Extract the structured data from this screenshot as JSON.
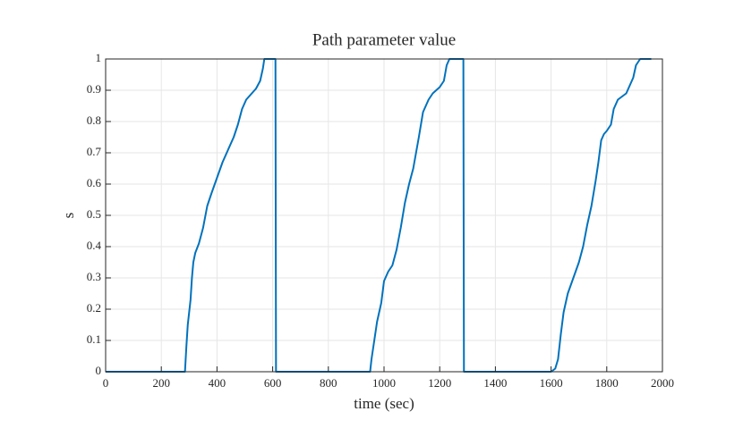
{
  "chart_data": {
    "type": "line",
    "title": "Path parameter value",
    "x_label": "time (sec)",
    "y_label": "s",
    "x": [
      0,
      285,
      290,
      295,
      305,
      310,
      315,
      322,
      335,
      350,
      365,
      380,
      400,
      420,
      440,
      460,
      475,
      490,
      505,
      520,
      540,
      555,
      565,
      570,
      610,
      612,
      950,
      955,
      965,
      975,
      990,
      1000,
      1015,
      1030,
      1045,
      1060,
      1075,
      1090,
      1105,
      1115,
      1125,
      1140,
      1160,
      1175,
      1200,
      1215,
      1225,
      1235,
      1285,
      1287,
      1600,
      1615,
      1625,
      1635,
      1645,
      1660,
      1680,
      1700,
      1715,
      1730,
      1745,
      1760,
      1770,
      1780,
      1790,
      1800,
      1815,
      1825,
      1840,
      1855,
      1870,
      1885,
      1895,
      1905,
      1920,
      1960
    ],
    "series": [
      {
        "name": "s",
        "color": "#0072bd",
        "values": [
          0,
          0,
          0.08,
          0.15,
          0.23,
          0.3,
          0.35,
          0.38,
          0.41,
          0.46,
          0.53,
          0.57,
          0.62,
          0.67,
          0.71,
          0.75,
          0.79,
          0.84,
          0.87,
          0.885,
          0.905,
          0.93,
          0.97,
          1,
          1,
          0,
          0,
          0.04,
          0.1,
          0.16,
          0.22,
          0.29,
          0.32,
          0.34,
          0.39,
          0.46,
          0.54,
          0.6,
          0.65,
          0.7,
          0.75,
          0.83,
          0.87,
          0.89,
          0.91,
          0.93,
          0.98,
          1,
          1,
          0,
          0,
          0.01,
          0.04,
          0.12,
          0.19,
          0.25,
          0.3,
          0.35,
          0.4,
          0.47,
          0.53,
          0.61,
          0.67,
          0.74,
          0.76,
          0.77,
          0.79,
          0.84,
          0.87,
          0.88,
          0.89,
          0.92,
          0.94,
          0.98,
          1,
          1
        ]
      }
    ],
    "xlim": [
      0,
      2000
    ],
    "ylim": [
      0,
      1
    ],
    "xticks": [
      0,
      200,
      400,
      600,
      800,
      1000,
      1200,
      1400,
      1600,
      1800,
      2000
    ],
    "yticks": [
      0,
      0.1,
      0.2,
      0.3,
      0.4,
      0.5,
      0.6,
      0.7,
      0.8,
      0.9,
      1
    ],
    "grid": true
  }
}
